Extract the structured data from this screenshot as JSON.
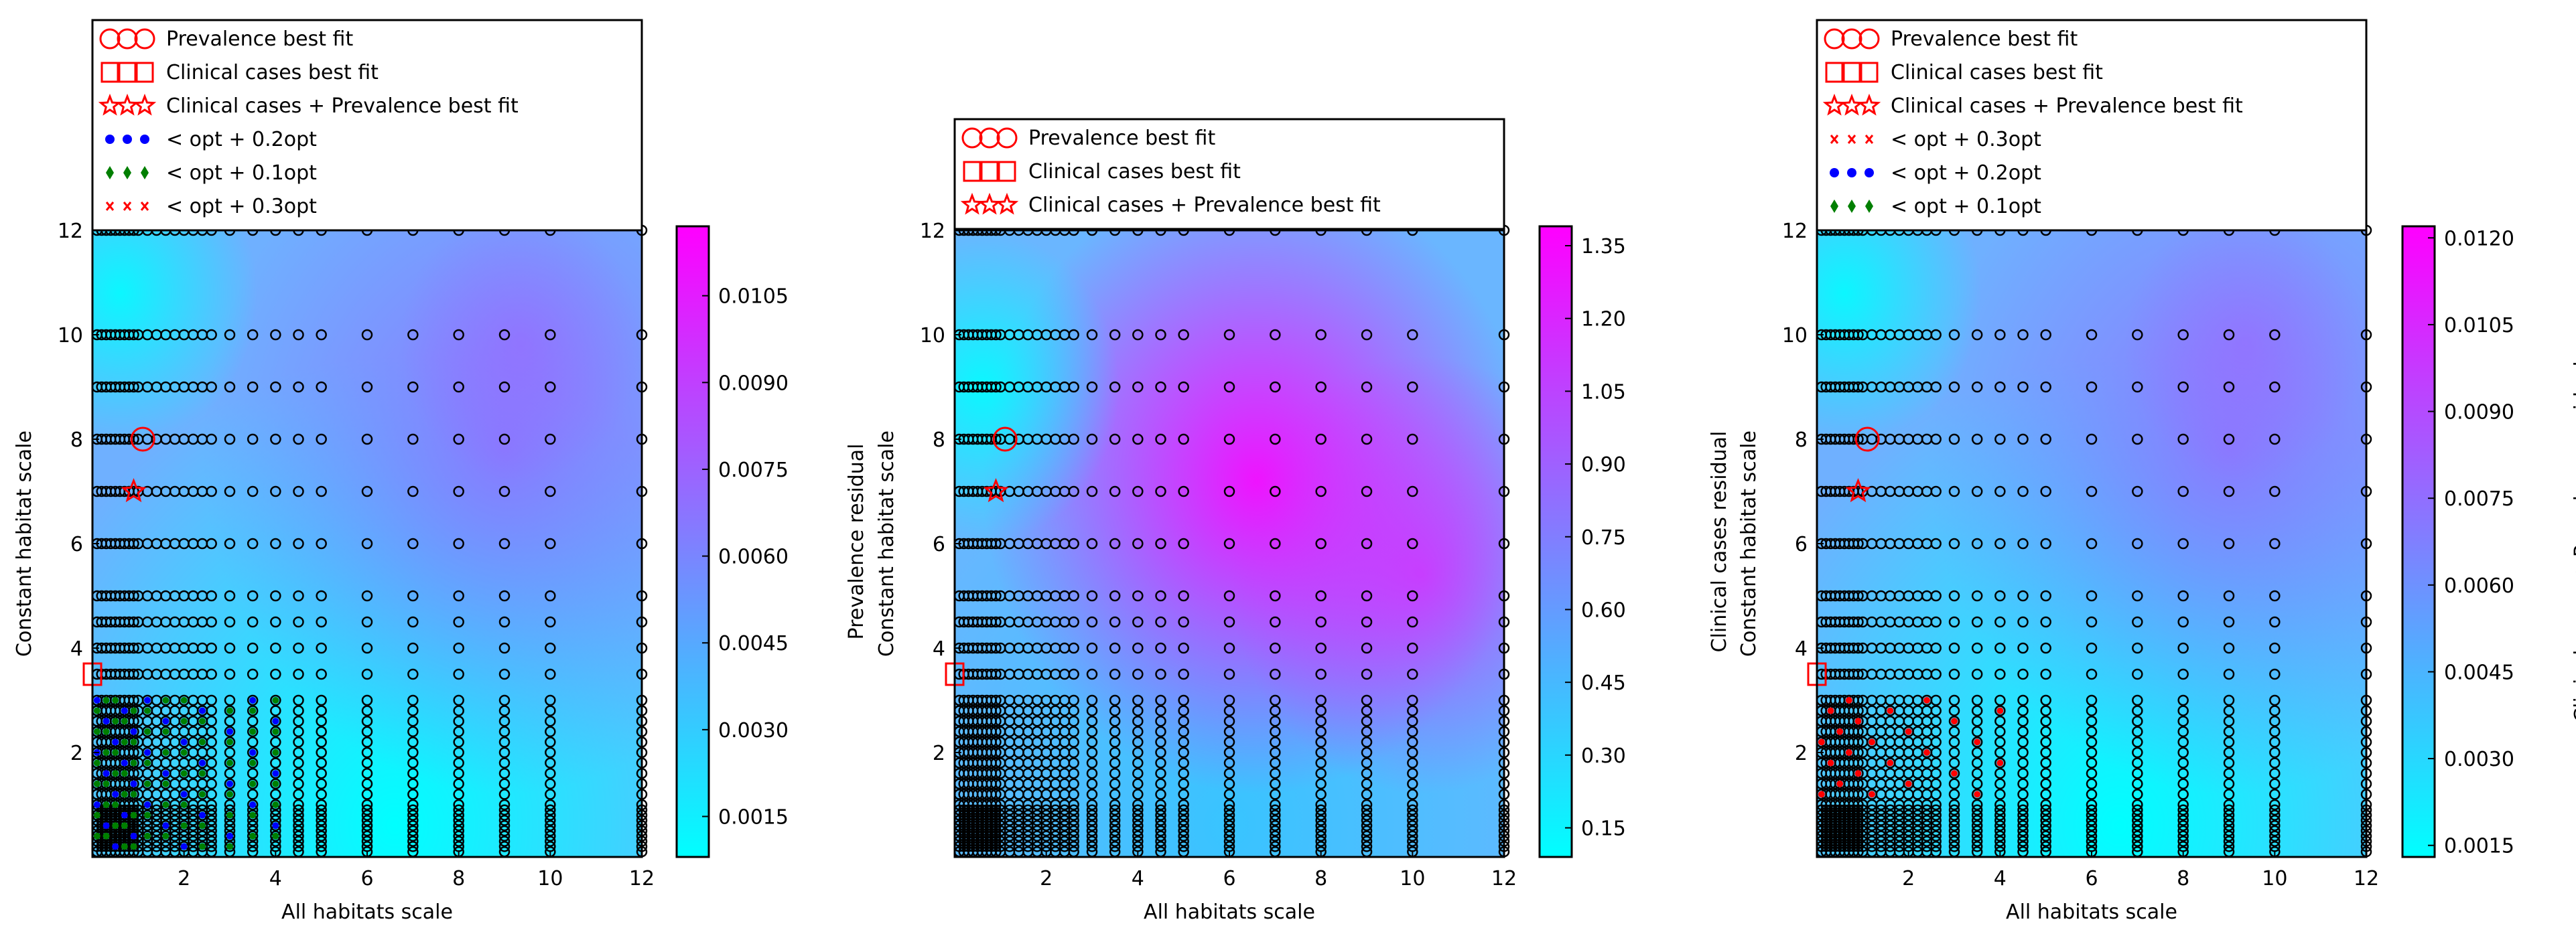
{
  "colors": {
    "cmap_low": "#00ffff",
    "cmap_high": "#ff00ff",
    "marker_red": "#ff0000",
    "marker_blue": "#0000ff",
    "marker_green": "#007f00",
    "scatter_edge": "#000000"
  },
  "chart_data": [
    {
      "type": "heatmap",
      "xlabel": "All habitats scale",
      "ylabel": "Constant habitat scale",
      "xlim": [
        0,
        12
      ],
      "ylim": [
        0,
        12
      ],
      "xticks": [
        "2",
        "4",
        "6",
        "8",
        "10",
        "12"
      ],
      "yticks": [
        "2",
        "4",
        "6",
        "8",
        "10",
        "12"
      ],
      "grid": false,
      "colorbar": {
        "label": "Prevalence residual",
        "ticks": [
          "0.0015",
          "0.0030",
          "0.0045",
          "0.0060",
          "0.0075",
          "0.0090",
          "0.0105"
        ],
        "range": [
          0.0008,
          0.0117
        ]
      },
      "legend_position": "above plot",
      "legend": [
        {
          "label": "Prevalence best fit",
          "marker": "circle-open-red"
        },
        {
          "label": "Clinical cases best fit",
          "marker": "square-open-red"
        },
        {
          "label": "Clinical cases + Prevalence best fit",
          "marker": "star-open-red"
        },
        {
          "label": "< opt + 0.2opt",
          "marker": "dot-blue"
        },
        {
          "label": "< opt + 0.1opt",
          "marker": "diamond-green"
        },
        {
          "label": "< opt + 0.3opt",
          "marker": "x-red"
        }
      ],
      "best_fits": {
        "prevalence": [
          1.1,
          8
        ],
        "clinical_cases": [
          0,
          3.5
        ],
        "combined": [
          0.9,
          7
        ]
      }
    },
    {
      "type": "heatmap",
      "xlabel": "All habitats scale",
      "ylabel": "Constant habitat scale",
      "xlim": [
        0,
        12
      ],
      "ylim": [
        0,
        12
      ],
      "xticks": [
        "2",
        "4",
        "6",
        "8",
        "10",
        "12"
      ],
      "yticks": [
        "2",
        "4",
        "6",
        "8",
        "10",
        "12"
      ],
      "grid": false,
      "colorbar": {
        "label": "Clinical cases residual",
        "ticks": [
          "0.15",
          "0.30",
          "0.45",
          "0.60",
          "0.75",
          "0.90",
          "1.05",
          "1.20",
          "1.35"
        ],
        "range": [
          0.09,
          1.39
        ]
      },
      "legend_position": "above plot",
      "legend": [
        {
          "label": "Prevalence best fit",
          "marker": "circle-open-red"
        },
        {
          "label": "Clinical cases best fit",
          "marker": "square-open-red"
        },
        {
          "label": "Clinical cases + Prevalence best fit",
          "marker": "star-open-red"
        }
      ],
      "best_fits": {
        "prevalence": [
          1.1,
          8
        ],
        "clinical_cases": [
          0,
          3.5
        ],
        "combined": [
          0.9,
          7
        ]
      }
    },
    {
      "type": "heatmap",
      "xlabel": "All habitats scale",
      "ylabel": "Constant habitat scale",
      "xlim": [
        0,
        12
      ],
      "ylim": [
        0,
        12
      ],
      "xticks": [
        "2",
        "4",
        "6",
        "8",
        "10",
        "12"
      ],
      "yticks": [
        "2",
        "4",
        "6",
        "8",
        "10",
        "12"
      ],
      "grid": false,
      "colorbar": {
        "label": "Clinical cases + Prevalence residual",
        "ticks": [
          "0.0015",
          "0.0030",
          "0.0045",
          "0.0060",
          "0.0075",
          "0.0090",
          "0.0105",
          "0.0120"
        ],
        "range": [
          0.0013,
          0.0122
        ]
      },
      "legend_position": "above plot",
      "legend": [
        {
          "label": "Prevalence best fit",
          "marker": "circle-open-red"
        },
        {
          "label": "Clinical cases best fit",
          "marker": "square-open-red"
        },
        {
          "label": "Clinical cases + Prevalence best fit",
          "marker": "star-open-red"
        },
        {
          "label": "< opt + 0.3opt",
          "marker": "x-red"
        },
        {
          "label": "< opt + 0.2opt",
          "marker": "dot-blue"
        },
        {
          "label": "< opt + 0.1opt",
          "marker": "diamond-green"
        }
      ],
      "best_fits": {
        "prevalence": [
          1.1,
          8
        ],
        "clinical_cases": [
          0,
          3.5
        ],
        "combined": [
          0.9,
          7
        ]
      }
    }
  ]
}
